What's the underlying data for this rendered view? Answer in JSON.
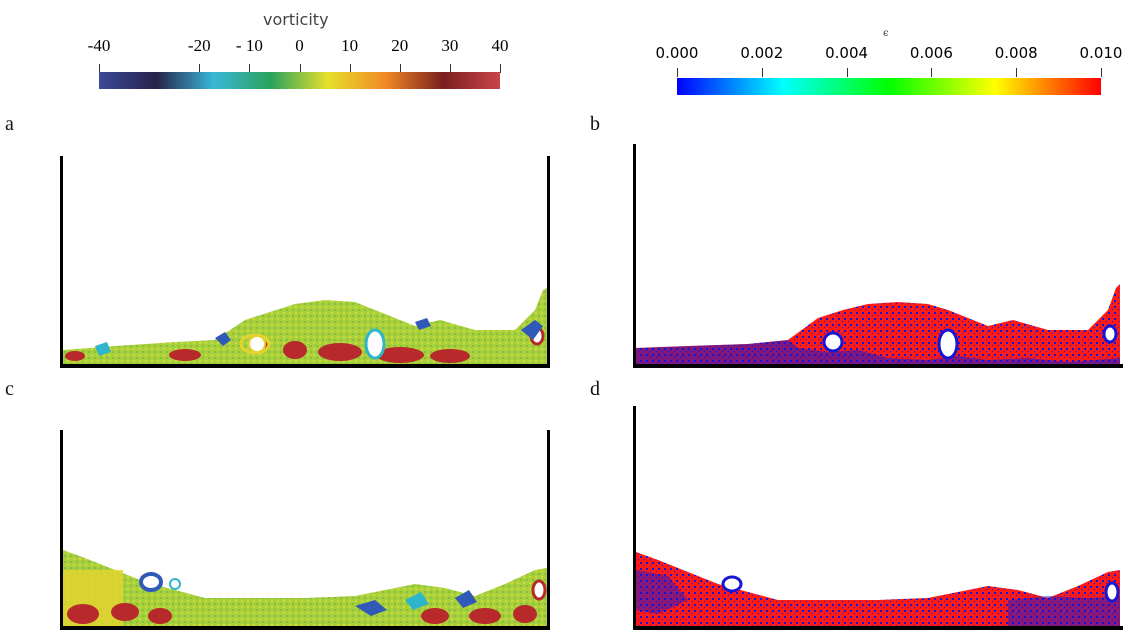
{
  "colorbar_left": {
    "title": "vorticity",
    "ticks": [
      "-40",
      "-20",
      "- 10",
      "0",
      "10",
      "20",
      "30",
      "40"
    ],
    "tick_values": [
      -40,
      -20,
      -10,
      0,
      10,
      20,
      30,
      40
    ],
    "range": [
      -40,
      40
    ],
    "colors": [
      "#3b4a9a",
      "#27234a",
      "#39b7d8",
      "#2aa25c",
      "#e6e02b",
      "#f08a24",
      "#7a1f1f",
      "#c9454a"
    ]
  },
  "colorbar_right": {
    "title": "ϵ",
    "ticks": [
      "0.000",
      "0.002",
      "0.004",
      "0.006",
      "0.008",
      "0.010"
    ],
    "tick_values": [
      0,
      0.002,
      0.004,
      0.006,
      0.008,
      0.01
    ],
    "range": [
      0,
      0.01
    ],
    "colors": [
      "#0000ff",
      "#00ffff",
      "#00ff00",
      "#ffff00",
      "#ff0000"
    ]
  },
  "panels": {
    "a": "a",
    "b": "b",
    "c": "c",
    "d": "d"
  },
  "palette": {
    "vort_green": "#9fcf3a",
    "vort_yellow": "#e2d32f",
    "vort_red": "#b7292b",
    "vort_blue": "#3159b8",
    "vort_cyan": "#2fb5c9",
    "eps_red": "#ff1a1a",
    "eps_blue": "#1515d6"
  }
}
